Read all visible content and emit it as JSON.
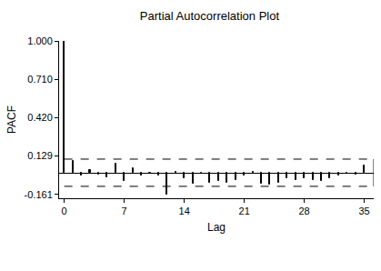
{
  "chart_data": {
    "type": "bar",
    "title": "Partial Autocorrelation Plot",
    "x_label": "Lag",
    "y_label": "PACF",
    "x": [
      0,
      1,
      2,
      3,
      4,
      5,
      6,
      7,
      8,
      9,
      10,
      11,
      12,
      13,
      14,
      15,
      16,
      17,
      18,
      19,
      20,
      21,
      22,
      23,
      24,
      25,
      26,
      27,
      28,
      29,
      30,
      31,
      32,
      33,
      34,
      35
    ],
    "values": [
      1.0,
      0.09,
      -0.02,
      0.02,
      -0.01,
      -0.03,
      0.07,
      -0.06,
      0.04,
      -0.02,
      0.0,
      -0.02,
      -0.16,
      0.01,
      -0.04,
      -0.08,
      0.0,
      -0.07,
      -0.06,
      -0.07,
      -0.05,
      -0.02,
      0.01,
      -0.08,
      -0.09,
      -0.07,
      -0.04,
      -0.05,
      -0.04,
      -0.05,
      -0.06,
      -0.04,
      -0.02,
      0.0,
      -0.01,
      0.06
    ],
    "confidence_limits": [
      -0.1,
      0.106
    ],
    "color": "#000000",
    "xlim": [
      -0.6,
      36.1
    ],
    "ylim": [
      -0.19,
      1.0
    ],
    "xticks": [
      0,
      7,
      14,
      21,
      28,
      35
    ],
    "yticks": [
      {
        "value": 1.0,
        "label": "1.000"
      },
      {
        "value": 0.71,
        "label": "0.710"
      },
      {
        "value": 0.42,
        "label": "0.420"
      },
      {
        "value": 0.129,
        "label": "0.129"
      },
      {
        "value": -0.161,
        "label": "-0.161"
      }
    ],
    "grid": false
  }
}
